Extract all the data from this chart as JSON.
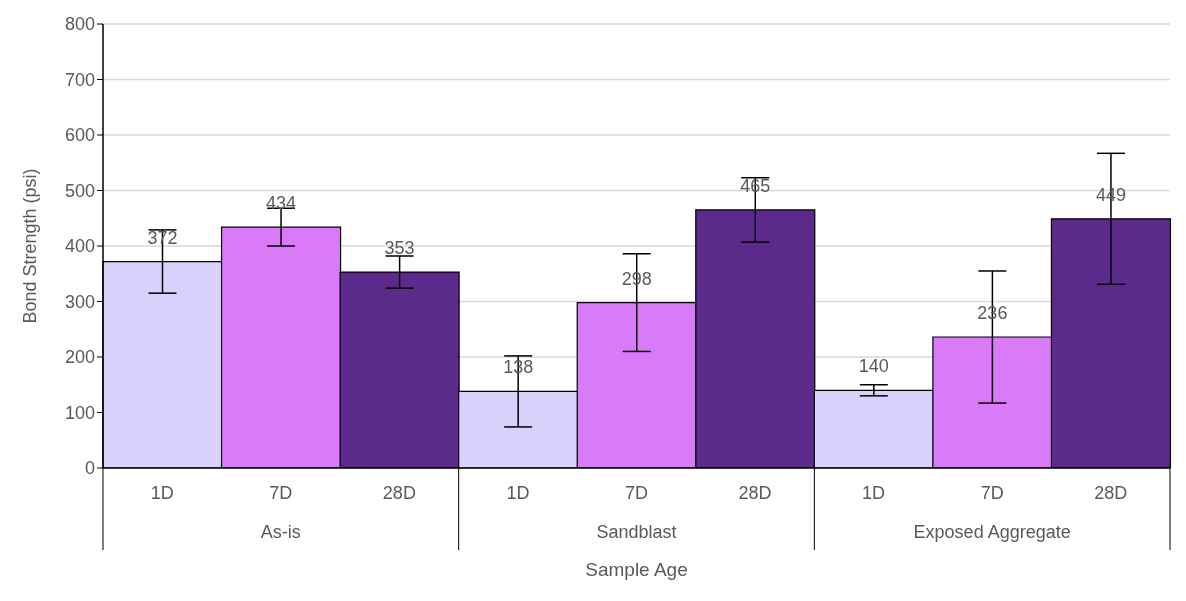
{
  "chart_data": {
    "type": "bar",
    "xlabel": "Sample Age",
    "ylabel": "Bond Strength (psi)",
    "categories": [
      "1D",
      "7D",
      "28D",
      "1D",
      "7D",
      "28D",
      "1D",
      "7D",
      "28D"
    ],
    "values": [
      372,
      434,
      353,
      138,
      298,
      465,
      140,
      236,
      449
    ],
    "errors": [
      57,
      34,
      29,
      64,
      88,
      58,
      10,
      119,
      118
    ],
    "colors": [
      "#d9d0fb",
      "#d97bf9",
      "#5c2a8a",
      "#d9d0fb",
      "#d97bf9",
      "#5c2a8a",
      "#d9d0fb",
      "#d97bf9",
      "#5c2a8a"
    ],
    "annotations": [
      "As-is",
      "Sandblast",
      "Exposed Aggregate"
    ],
    "ylim": [
      0,
      800
    ],
    "yticks": [
      0,
      100,
      200,
      300,
      400,
      500,
      600,
      700,
      800
    ],
    "grid": "y",
    "data_labels": true
  }
}
